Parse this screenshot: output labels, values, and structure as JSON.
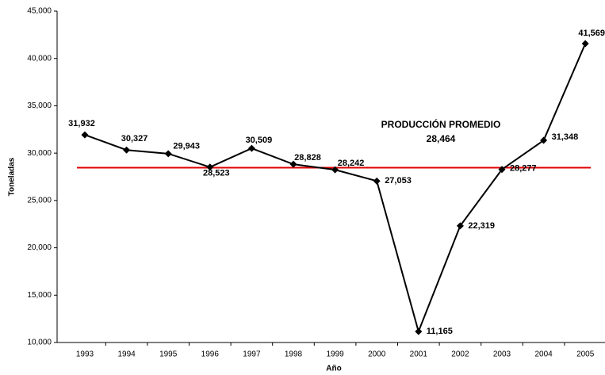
{
  "chart_data": {
    "type": "line",
    "x_label": "Año",
    "y_label": "Toneladas",
    "categories": [
      "1993",
      "1994",
      "1995",
      "1996",
      "1997",
      "1998",
      "1999",
      "2000",
      "2001",
      "2002",
      "2003",
      "2004",
      "2005"
    ],
    "values": [
      31932,
      30327,
      29943,
      28523,
      30509,
      28828,
      28242,
      27053,
      11165,
      22319,
      28277,
      31348,
      41569
    ],
    "value_labels": [
      "31,932",
      "30,327",
      "29,943",
      "28,523",
      "30,509",
      "28,828",
      "28,242",
      "27,053",
      "11,165",
      "22,319",
      "28,277",
      "31,348",
      "41,569"
    ],
    "color": "#000000",
    "ylim": [
      10000,
      45000
    ],
    "yticks": [
      {
        "value": 10000,
        "label": "10,000"
      },
      {
        "value": 15000,
        "label": "15,000"
      },
      {
        "value": 20000,
        "label": "20,000"
      },
      {
        "value": 25000,
        "label": "25,000"
      },
      {
        "value": 30000,
        "label": "30,000"
      },
      {
        "value": 35000,
        "label": "35,000"
      },
      {
        "value": 40000,
        "label": "40,000"
      },
      {
        "value": 45000,
        "label": "45,000"
      }
    ],
    "average": {
      "label": "PRODUCCIÓN PROMEDIO",
      "value": 28464,
      "value_label": "28,464",
      "color": "#e00000"
    }
  }
}
